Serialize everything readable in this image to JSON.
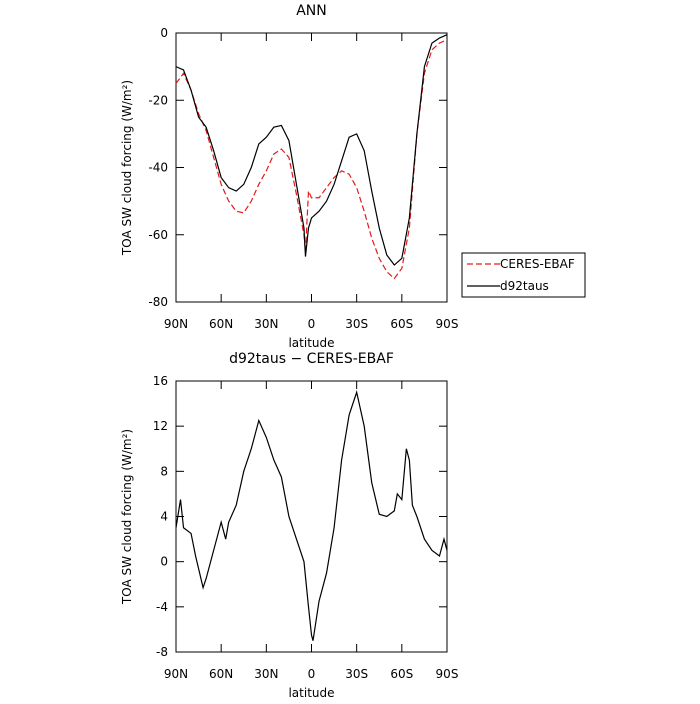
{
  "chart_data": [
    {
      "type": "line",
      "title": "ANN",
      "x_label": "latitude",
      "y_label": "TOA SW cloud forcing (W/m²)",
      "x": [
        90,
        85,
        80,
        75,
        70,
        65,
        60,
        55,
        50,
        45,
        40,
        35,
        30,
        25,
        20,
        15,
        10,
        5,
        4,
        2,
        0,
        -5,
        -10,
        -15,
        -20,
        -25,
        -30,
        -35,
        -40,
        -45,
        -50,
        -55,
        -60,
        -65,
        -70,
        -75,
        -80,
        -85,
        -90
      ],
      "series": [
        {
          "name": "CERES-EBAF",
          "color": "#e41a1c",
          "style": "dashed",
          "values": [
            -15,
            -12,
            -17,
            -24,
            -29,
            -37,
            -45,
            -50,
            -53,
            -53.5,
            -50,
            -45,
            -41,
            -36,
            -34.5,
            -37,
            -48,
            -60,
            -65,
            -47,
            -49,
            -49,
            -46,
            -43,
            -41,
            -42,
            -46,
            -53,
            -61,
            -67,
            -71,
            -73,
            -70,
            -58,
            -30,
            -12,
            -5,
            -3,
            -2
          ]
        },
        {
          "name": "d92taus",
          "color": "#000000",
          "style": "solid",
          "values": [
            -10,
            -11,
            -17,
            -25,
            -28,
            -35,
            -43,
            -46,
            -47,
            -45,
            -40,
            -33,
            -31,
            -28,
            -27.5,
            -32,
            -45,
            -58,
            -66.5,
            -58,
            -55,
            -53,
            -50,
            -45,
            -38,
            -31,
            -30,
            -35,
            -47,
            -58,
            -66,
            -69,
            -67,
            -55,
            -30,
            -10,
            -3,
            -1.5,
            -0.5
          ]
        }
      ],
      "xlim": [
        90,
        -90
      ],
      "xticks": [
        {
          "value": 90,
          "label": "90N"
        },
        {
          "value": 60,
          "label": "60N"
        },
        {
          "value": 30,
          "label": "30N"
        },
        0,
        {
          "value": -30,
          "label": "30S"
        },
        {
          "value": -60,
          "label": "60S"
        },
        {
          "value": -90,
          "label": "90S"
        }
      ],
      "ylim": [
        -80,
        0
      ],
      "yticks": [
        -80,
        -60,
        -40,
        -20,
        0
      ],
      "legend": "right"
    },
    {
      "type": "line",
      "title": "d92taus − CERES-EBAF",
      "x_label": "latitude",
      "y_label": "TOA SW cloud forcing (W/m²)",
      "x": [
        90,
        87,
        85,
        80,
        77,
        72,
        70,
        65,
        60,
        57,
        55,
        50,
        45,
        40,
        35,
        30,
        25,
        20,
        15,
        10,
        5,
        2,
        0,
        -1,
        -5,
        -10,
        -15,
        -20,
        -25,
        -30,
        -35,
        -40,
        -45,
        -50,
        -55,
        -57,
        -60,
        -63,
        -65,
        -67,
        -70,
        -75,
        -80,
        -85,
        -88,
        -90
      ],
      "series": [
        {
          "color": "#000000",
          "style": "solid",
          "values": [
            3,
            5.5,
            3,
            2.5,
            0.5,
            -2.3,
            -1.5,
            1,
            3.5,
            2,
            3.5,
            5,
            8,
            10,
            12.5,
            11,
            9,
            7.5,
            4,
            2,
            0,
            -4,
            -6.5,
            -7,
            -3.5,
            -1,
            3,
            9,
            13,
            15,
            12,
            7,
            4.2,
            4,
            4.5,
            6,
            5.5,
            10,
            9,
            5,
            4,
            2,
            1,
            0.5,
            2,
            1
          ]
        }
      ],
      "xlim": [
        90,
        -90
      ],
      "xticks": [
        {
          "value": 90,
          "label": "90N"
        },
        {
          "value": 60,
          "label": "60N"
        },
        {
          "value": 30,
          "label": "30N"
        },
        0,
        {
          "value": -30,
          "label": "30S"
        },
        {
          "value": -60,
          "label": "60S"
        },
        {
          "value": -90,
          "label": "90S"
        }
      ],
      "ylim": [
        -8,
        16
      ],
      "yticks": [
        -8,
        -4,
        0,
        4,
        8,
        12,
        16
      ]
    }
  ]
}
